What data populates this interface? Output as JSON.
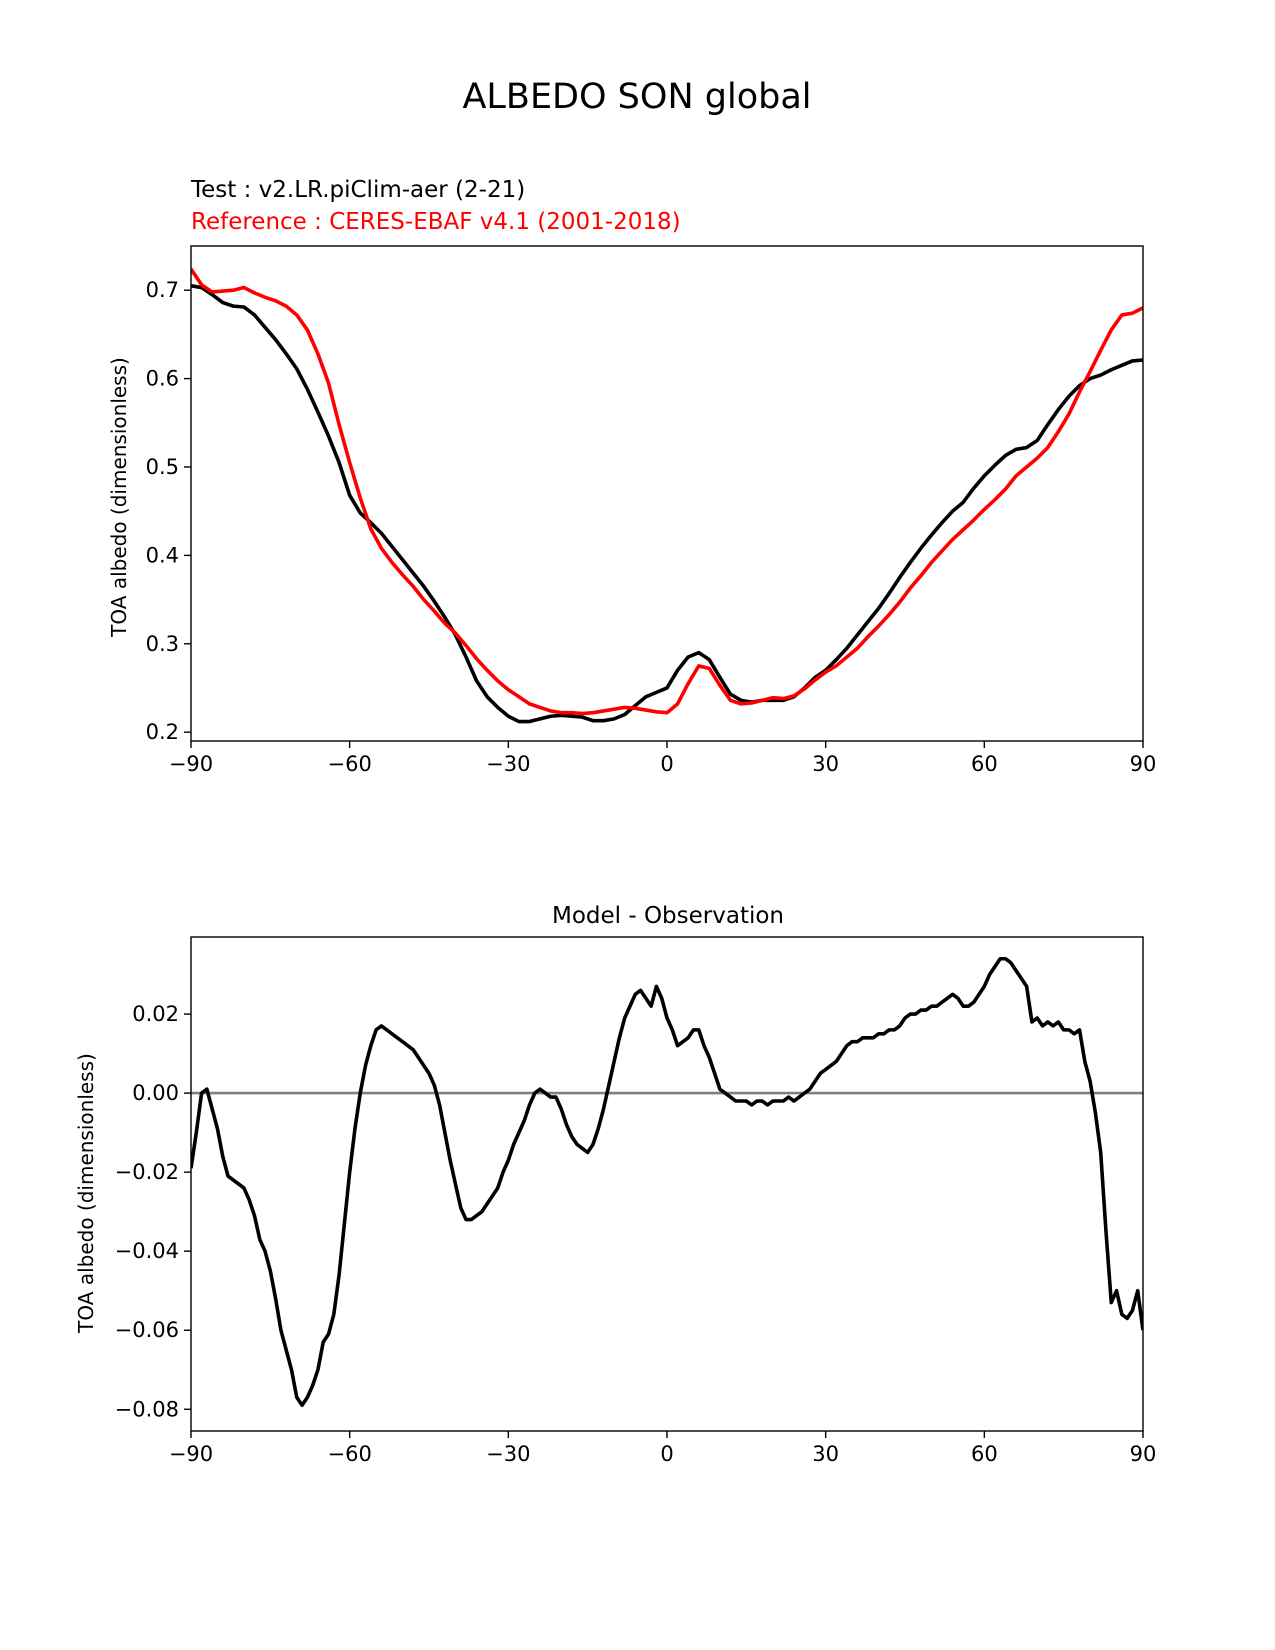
{
  "figure": {
    "title": "ALBEDO SON global"
  },
  "chart_data": [
    {
      "type": "line",
      "test_label": "Test : v2.LR.piClim-aer (2-21)",
      "reference_label": "Reference : CERES-EBAF v4.1 (2001-2018)",
      "title": "",
      "xlabel": "",
      "ylabel": "TOA albedo (dimensionless)",
      "xlim": [
        -90,
        90
      ],
      "ylim": [
        0.19,
        0.75
      ],
      "xticks": [
        -90,
        -60,
        -30,
        0,
        30,
        60,
        90
      ],
      "xtick_labels": [
        "−90",
        "−60",
        "−30",
        "0",
        "30",
        "60",
        "90"
      ],
      "yticks": [
        0.2,
        0.3,
        0.4,
        0.5,
        0.6,
        0.7
      ],
      "ytick_labels": [
        "0.2",
        "0.3",
        "0.4",
        "0.5",
        "0.6",
        "0.7"
      ],
      "series": [
        {
          "name": "Test",
          "color": "#000000",
          "x": [
            -90,
            -88,
            -86,
            -84,
            -82,
            -80,
            -78,
            -76,
            -74,
            -72,
            -70,
            -68,
            -66,
            -64,
            -62,
            -60,
            -58,
            -56,
            -54,
            -52,
            -50,
            -48,
            -46,
            -44,
            -42,
            -40,
            -38,
            -36,
            -34,
            -32,
            -30,
            -28,
            -26,
            -24,
            -22,
            -20,
            -18,
            -16,
            -14,
            -12,
            -10,
            -8,
            -6,
            -4,
            -2,
            0,
            2,
            4,
            6,
            8,
            10,
            12,
            14,
            16,
            18,
            20,
            22,
            24,
            26,
            28,
            30,
            32,
            34,
            36,
            38,
            40,
            42,
            44,
            46,
            48,
            50,
            52,
            54,
            56,
            58,
            60,
            62,
            64,
            66,
            68,
            70,
            72,
            74,
            76,
            78,
            80,
            82,
            84,
            86,
            88,
            90
          ],
          "y": [
            0.705,
            0.703,
            0.695,
            0.686,
            0.682,
            0.681,
            0.672,
            0.658,
            0.644,
            0.628,
            0.611,
            0.588,
            0.562,
            0.535,
            0.505,
            0.468,
            0.448,
            0.437,
            0.425,
            0.41,
            0.395,
            0.38,
            0.365,
            0.348,
            0.33,
            0.31,
            0.285,
            0.258,
            0.24,
            0.228,
            0.218,
            0.212,
            0.212,
            0.215,
            0.218,
            0.219,
            0.218,
            0.217,
            0.213,
            0.213,
            0.215,
            0.22,
            0.23,
            0.24,
            0.245,
            0.25,
            0.27,
            0.285,
            0.29,
            0.282,
            0.262,
            0.243,
            0.236,
            0.234,
            0.236,
            0.236,
            0.236,
            0.24,
            0.25,
            0.262,
            0.27,
            0.282,
            0.295,
            0.31,
            0.325,
            0.34,
            0.357,
            0.375,
            0.392,
            0.408,
            0.423,
            0.437,
            0.45,
            0.46,
            0.476,
            0.49,
            0.502,
            0.513,
            0.52,
            0.522,
            0.53,
            0.548,
            0.565,
            0.58,
            0.592,
            0.6,
            0.604,
            0.61,
            0.615,
            0.62,
            0.621
          ]
        },
        {
          "name": "Reference",
          "color": "#ff0000",
          "x": [
            -90,
            -88,
            -86,
            -84,
            -82,
            -80,
            -78,
            -76,
            -74,
            -72,
            -70,
            -68,
            -66,
            -64,
            -62,
            -60,
            -58,
            -56,
            -54,
            -52,
            -50,
            -48,
            -46,
            -44,
            -42,
            -40,
            -38,
            -36,
            -34,
            -32,
            -30,
            -28,
            -26,
            -24,
            -22,
            -20,
            -18,
            -16,
            -14,
            -12,
            -10,
            -8,
            -6,
            -4,
            -2,
            0,
            2,
            4,
            6,
            8,
            10,
            12,
            14,
            16,
            18,
            20,
            22,
            24,
            26,
            28,
            30,
            32,
            34,
            36,
            38,
            40,
            42,
            44,
            46,
            48,
            50,
            52,
            54,
            56,
            58,
            60,
            62,
            64,
            66,
            68,
            70,
            72,
            74,
            76,
            78,
            80,
            82,
            84,
            86,
            88,
            90
          ],
          "y": [
            0.724,
            0.706,
            0.698,
            0.699,
            0.7,
            0.703,
            0.697,
            0.692,
            0.688,
            0.682,
            0.672,
            0.655,
            0.628,
            0.595,
            0.548,
            0.505,
            0.465,
            0.43,
            0.408,
            0.392,
            0.378,
            0.365,
            0.35,
            0.337,
            0.323,
            0.312,
            0.298,
            0.283,
            0.27,
            0.258,
            0.248,
            0.24,
            0.232,
            0.228,
            0.224,
            0.222,
            0.222,
            0.221,
            0.222,
            0.224,
            0.226,
            0.228,
            0.227,
            0.225,
            0.223,
            0.222,
            0.232,
            0.255,
            0.275,
            0.272,
            0.253,
            0.236,
            0.232,
            0.233,
            0.236,
            0.239,
            0.238,
            0.241,
            0.249,
            0.259,
            0.268,
            0.275,
            0.285,
            0.295,
            0.308,
            0.32,
            0.333,
            0.347,
            0.363,
            0.377,
            0.392,
            0.405,
            0.418,
            0.429,
            0.44,
            0.452,
            0.463,
            0.475,
            0.49,
            0.5,
            0.51,
            0.522,
            0.54,
            0.56,
            0.585,
            0.608,
            0.632,
            0.655,
            0.672,
            0.674,
            0.68
          ]
        }
      ]
    },
    {
      "type": "line",
      "title": "Model - Observation",
      "xlabel": "",
      "ylabel": "TOA albedo (dimensionless)",
      "xlim": [
        -90,
        90
      ],
      "ylim": [
        -0.0855,
        0.0395
      ],
      "xticks": [
        -90,
        -60,
        -30,
        0,
        30,
        60,
        90
      ],
      "xtick_labels": [
        "−90",
        "−60",
        "−30",
        "0",
        "30",
        "60",
        "90"
      ],
      "yticks": [
        -0.08,
        -0.06,
        -0.04,
        -0.02,
        0.0,
        0.02
      ],
      "ytick_labels": [
        "−0.08",
        "−0.06",
        "−0.04",
        "−0.02",
        "0.00",
        "0.02"
      ],
      "zero_line_color": "#808080",
      "series": [
        {
          "name": "Model - Observation",
          "color": "#000000",
          "x": [
            -90,
            -89,
            -88,
            -87,
            -86,
            -85,
            -84,
            -83,
            -82,
            -81,
            -80,
            -79,
            -78,
            -77,
            -76,
            -75,
            -74,
            -73,
            -72,
            -71,
            -70,
            -69,
            -68,
            -67,
            -66,
            -65,
            -64,
            -63,
            -62,
            -61,
            -60,
            -59,
            -58,
            -57,
            -56,
            -55,
            -54,
            -53,
            -52,
            -51,
            -50,
            -49,
            -48,
            -47,
            -46,
            -45,
            -44,
            -43,
            -42,
            -41,
            -40,
            -39,
            -38,
            -37,
            -36,
            -35,
            -34,
            -33,
            -32,
            -31,
            -30,
            -29,
            -28,
            -27,
            -26,
            -25,
            -24,
            -23,
            -22,
            -21,
            -20,
            -19,
            -18,
            -17,
            -16,
            -15,
            -14,
            -13,
            -12,
            -11,
            -10,
            -9,
            -8,
            -7,
            -6,
            -5,
            -4,
            -3,
            -2,
            -1,
            0,
            1,
            2,
            3,
            4,
            5,
            6,
            7,
            8,
            9,
            10,
            11,
            12,
            13,
            14,
            15,
            16,
            17,
            18,
            19,
            20,
            21,
            22,
            23,
            24,
            25,
            26,
            27,
            28,
            29,
            30,
            31,
            32,
            33,
            34,
            35,
            36,
            37,
            38,
            39,
            40,
            41,
            42,
            43,
            44,
            45,
            46,
            47,
            48,
            49,
            50,
            51,
            52,
            53,
            54,
            55,
            56,
            57,
            58,
            59,
            60,
            61,
            62,
            63,
            64,
            65,
            66,
            67,
            68,
            69,
            70,
            71,
            72,
            73,
            74,
            75,
            76,
            77,
            78,
            79,
            80,
            81,
            82,
            83,
            84,
            85,
            86,
            87,
            88,
            89,
            90
          ],
          "y": [
            -0.019,
            -0.01,
            0.0,
            0.001,
            -0.004,
            -0.009,
            -0.016,
            -0.021,
            -0.022,
            -0.023,
            -0.024,
            -0.027,
            -0.031,
            -0.037,
            -0.04,
            -0.045,
            -0.052,
            -0.06,
            -0.065,
            -0.07,
            -0.077,
            -0.079,
            -0.077,
            -0.074,
            -0.07,
            -0.063,
            -0.061,
            -0.056,
            -0.046,
            -0.033,
            -0.02,
            -0.009,
            0.0,
            0.007,
            0.012,
            0.016,
            0.017,
            0.016,
            0.015,
            0.014,
            0.013,
            0.012,
            0.011,
            0.009,
            0.007,
            0.005,
            0.002,
            -0.003,
            -0.01,
            -0.017,
            -0.023,
            -0.029,
            -0.032,
            -0.032,
            -0.031,
            -0.03,
            -0.028,
            -0.026,
            -0.024,
            -0.02,
            -0.017,
            -0.013,
            -0.01,
            -0.007,
            -0.003,
            0.0,
            0.001,
            0.0,
            -0.001,
            -0.001,
            -0.004,
            -0.008,
            -0.011,
            -0.013,
            -0.014,
            -0.015,
            -0.013,
            -0.009,
            -0.004,
            0.002,
            0.008,
            0.014,
            0.019,
            0.022,
            0.025,
            0.026,
            0.024,
            0.022,
            0.027,
            0.024,
            0.019,
            0.016,
            0.012,
            0.013,
            0.014,
            0.016,
            0.016,
            0.012,
            0.009,
            0.005,
            0.001,
            0.0,
            -0.001,
            -0.002,
            -0.002,
            -0.002,
            -0.003,
            -0.002,
            -0.002,
            -0.003,
            -0.002,
            -0.002,
            -0.002,
            -0.001,
            -0.002,
            -0.001,
            0.0,
            0.001,
            0.003,
            0.005,
            0.006,
            0.007,
            0.008,
            0.01,
            0.012,
            0.013,
            0.013,
            0.014,
            0.014,
            0.014,
            0.015,
            0.015,
            0.016,
            0.016,
            0.017,
            0.019,
            0.02,
            0.02,
            0.021,
            0.021,
            0.022,
            0.022,
            0.023,
            0.024,
            0.025,
            0.024,
            0.022,
            0.022,
            0.023,
            0.025,
            0.027,
            0.03,
            0.032,
            0.034,
            0.034,
            0.033,
            0.031,
            0.029,
            0.027,
            0.018,
            0.019,
            0.017,
            0.018,
            0.017,
            0.018,
            0.016,
            0.016,
            0.015,
            0.016,
            0.008,
            0.003,
            -0.005,
            -0.015,
            -0.035,
            -0.053,
            -0.05,
            -0.056,
            -0.057,
            -0.055,
            -0.05,
            -0.06
          ]
        }
      ]
    }
  ]
}
